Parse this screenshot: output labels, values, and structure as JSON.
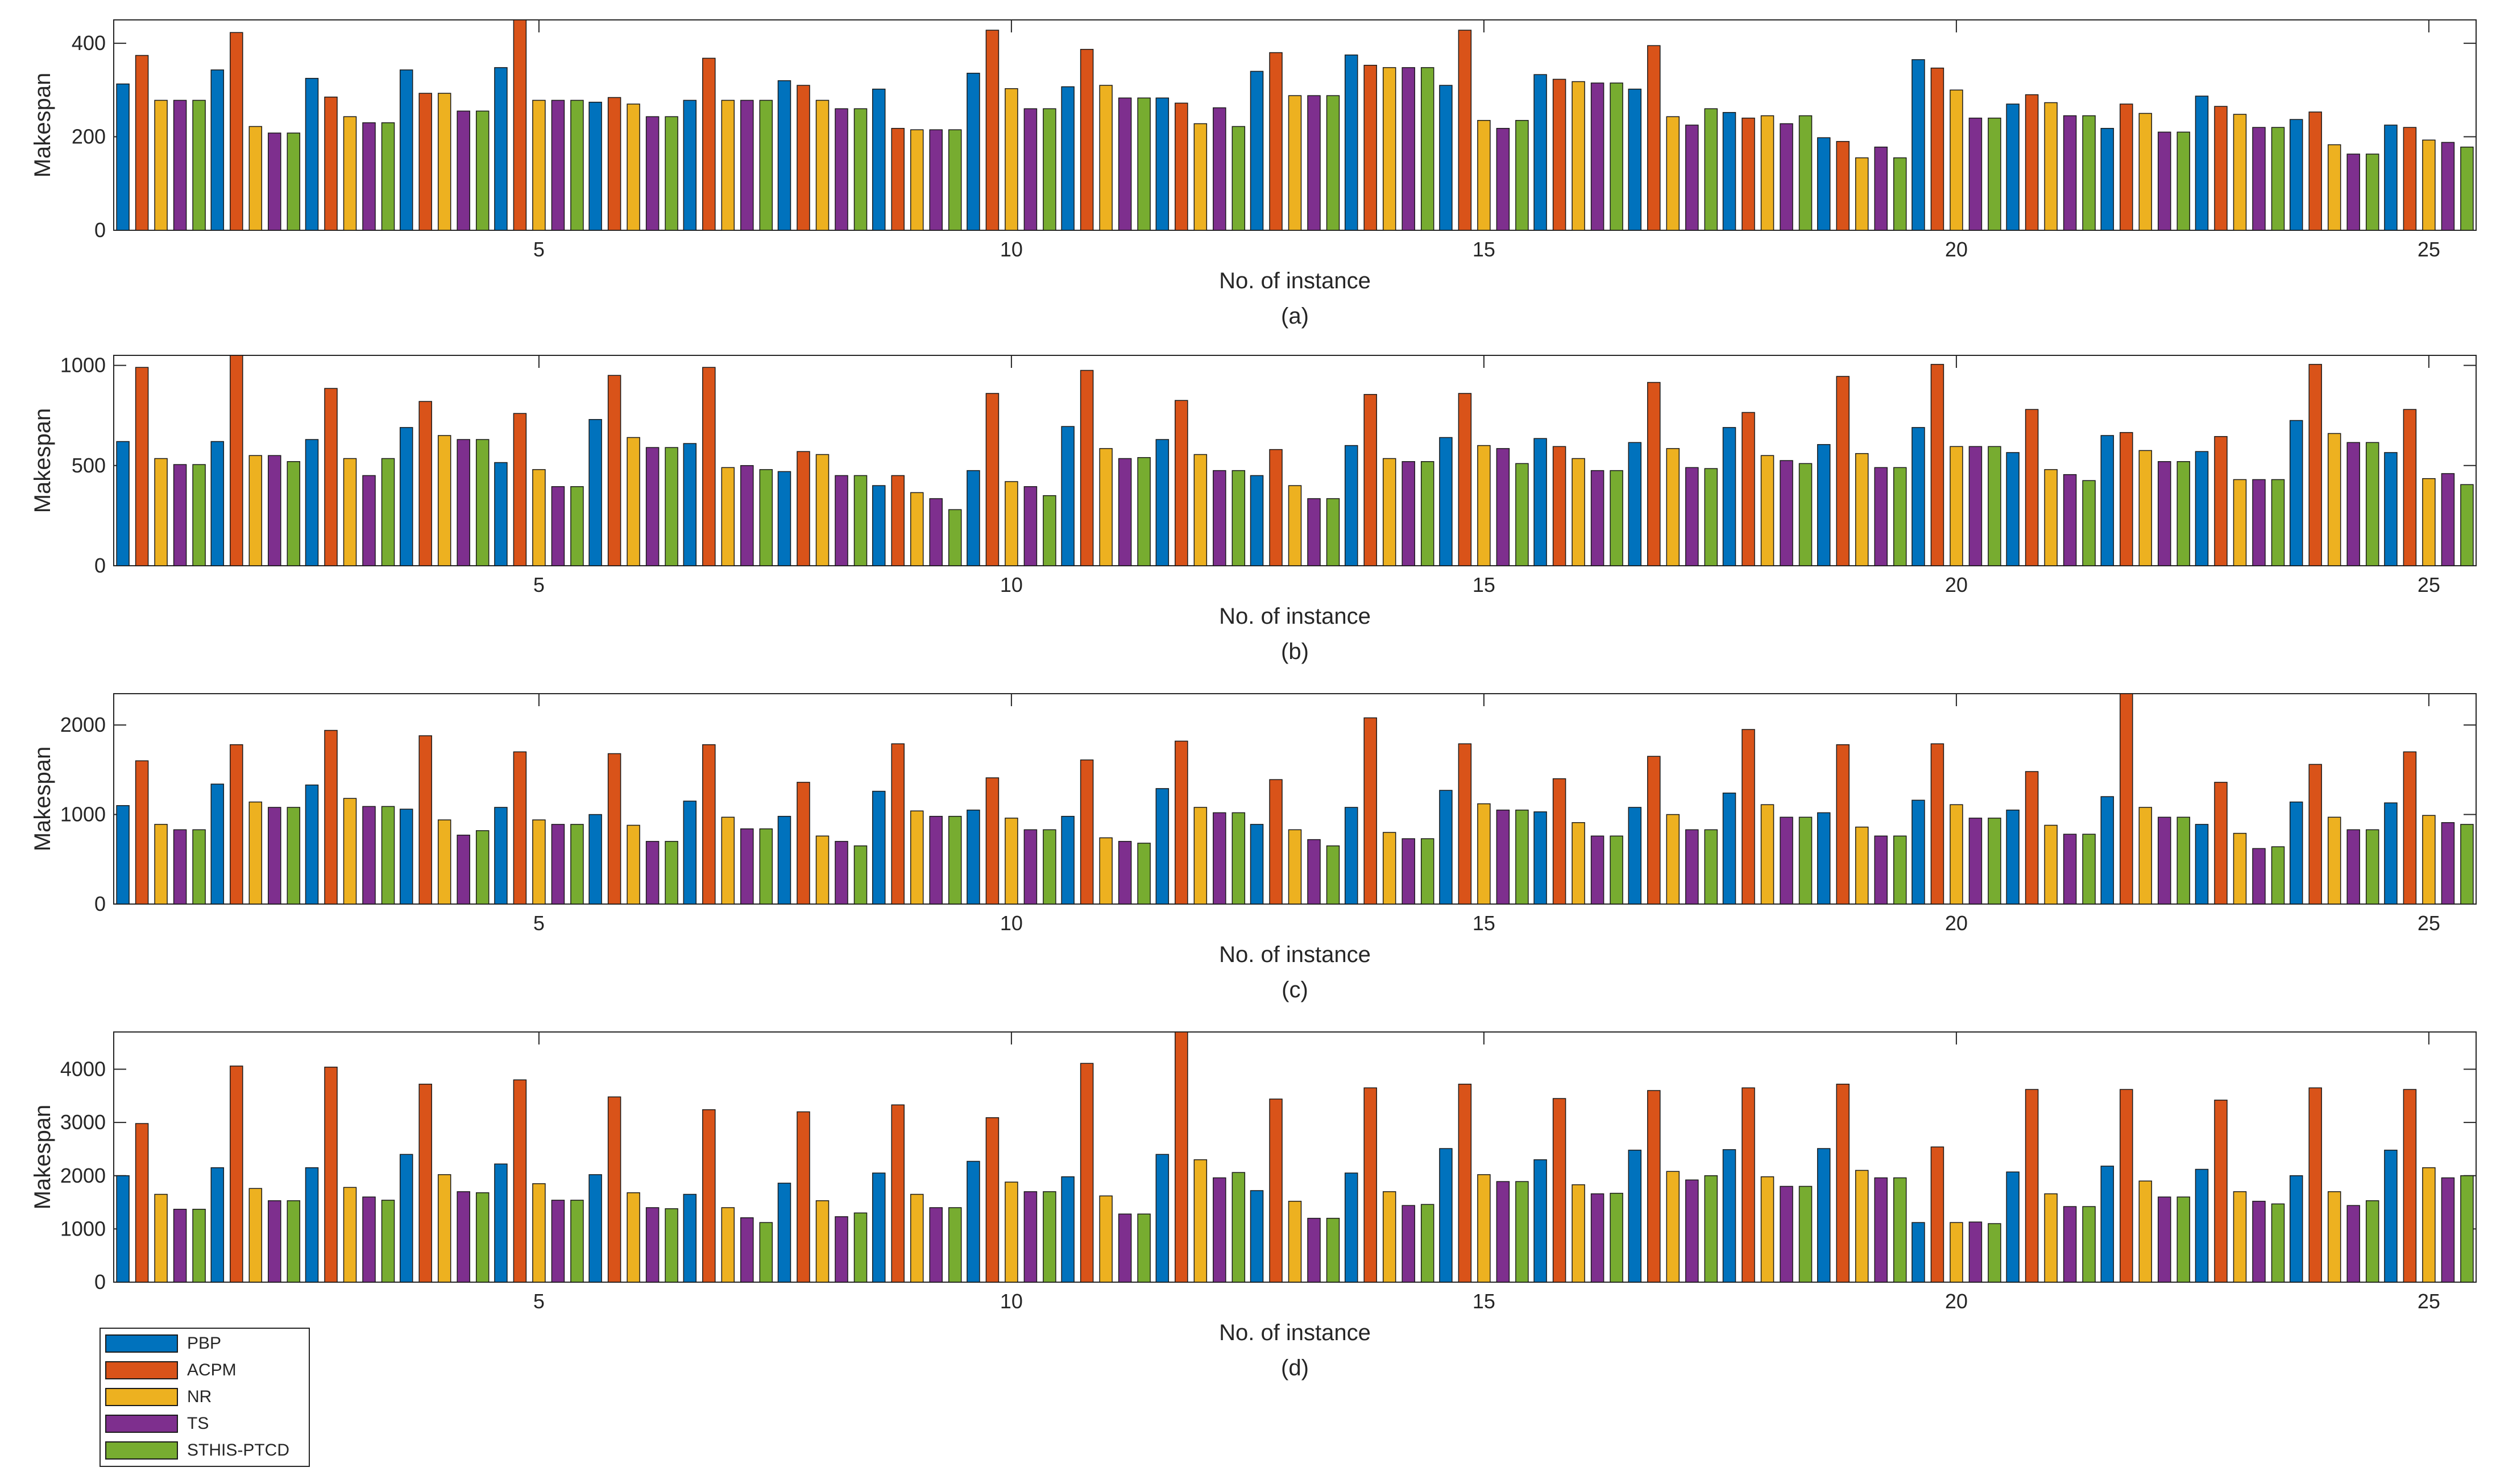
{
  "chart_data": [
    {
      "type": "bar",
      "label": "(a)",
      "xlabel": "No. of instance",
      "ylabel": "Makespan",
      "ylim": [
        0,
        450
      ],
      "yticks": [
        0,
        200,
        400
      ],
      "xticks": [
        5,
        10,
        15,
        20,
        25
      ],
      "categories": [
        1,
        2,
        3,
        4,
        5,
        6,
        7,
        8,
        9,
        10,
        11,
        12,
        13,
        14,
        15,
        16,
        17,
        18,
        19,
        20,
        21,
        22,
        23,
        24,
        25
      ],
      "series": [
        {
          "name": "PBP",
          "values": [
            313,
            343,
            325,
            343,
            348,
            274,
            278,
            320,
            302,
            336,
            307,
            283,
            340,
            375,
            310,
            333,
            302,
            252,
            198,
            365,
            270,
            218,
            287,
            237,
            225
          ]
        },
        {
          "name": "ACPM",
          "values": [
            374,
            423,
            285,
            293,
            450,
            284,
            368,
            310,
            218,
            428,
            387,
            272,
            380,
            353,
            428,
            323,
            395,
            240,
            190,
            347,
            290,
            270,
            265,
            253,
            220
          ]
        },
        {
          "name": "NR",
          "values": [
            278,
            222,
            243,
            293,
            278,
            270,
            278,
            278,
            215,
            303,
            310,
            228,
            288,
            348,
            235,
            318,
            243,
            245,
            155,
            300,
            273,
            250,
            248,
            183,
            193
          ]
        },
        {
          "name": "TS",
          "values": [
            278,
            208,
            230,
            255,
            278,
            243,
            278,
            260,
            215,
            260,
            283,
            262,
            288,
            348,
            218,
            315,
            225,
            228,
            178,
            240,
            245,
            210,
            220,
            163,
            188
          ]
        },
        {
          "name": "STHIS-PTCD",
          "values": [
            278,
            208,
            230,
            255,
            278,
            243,
            278,
            260,
            215,
            260,
            283,
            222,
            288,
            348,
            235,
            315,
            260,
            245,
            155,
            240,
            245,
            210,
            220,
            163,
            178
          ]
        }
      ]
    },
    {
      "type": "bar",
      "label": "(b)",
      "xlabel": "No. of instance",
      "ylabel": "Makespan",
      "ylim": [
        0,
        1050
      ],
      "yticks": [
        0,
        500,
        1000
      ],
      "xticks": [
        5,
        10,
        15,
        20,
        25
      ],
      "categories": [
        1,
        2,
        3,
        4,
        5,
        6,
        7,
        8,
        9,
        10,
        11,
        12,
        13,
        14,
        15,
        16,
        17,
        18,
        19,
        20,
        21,
        22,
        23,
        24,
        25
      ],
      "series": [
        {
          "name": "PBP",
          "values": [
            620,
            620,
            630,
            690,
            515,
            730,
            610,
            470,
            400,
            475,
            695,
            630,
            450,
            600,
            640,
            635,
            615,
            690,
            605,
            690,
            565,
            650,
            570,
            725,
            565
          ]
        },
        {
          "name": "ACPM",
          "values": [
            990,
            1050,
            885,
            820,
            760,
            950,
            990,
            570,
            450,
            860,
            975,
            825,
            580,
            855,
            860,
            595,
            915,
            765,
            945,
            1005,
            780,
            665,
            645,
            1005,
            780
          ]
        },
        {
          "name": "NR",
          "values": [
            535,
            550,
            535,
            650,
            480,
            640,
            490,
            555,
            365,
            420,
            585,
            555,
            400,
            535,
            600,
            535,
            585,
            550,
            560,
            595,
            480,
            575,
            430,
            660,
            435
          ]
        },
        {
          "name": "TS",
          "values": [
            505,
            550,
            450,
            630,
            395,
            590,
            500,
            450,
            335,
            395,
            535,
            475,
            335,
            520,
            585,
            475,
            490,
            525,
            490,
            595,
            455,
            520,
            430,
            615,
            460
          ]
        },
        {
          "name": "STHIS-PTCD",
          "values": [
            505,
            520,
            535,
            630,
            395,
            590,
            480,
            450,
            280,
            350,
            540,
            475,
            335,
            520,
            510,
            475,
            485,
            510,
            490,
            595,
            425,
            520,
            430,
            615,
            405
          ]
        }
      ]
    },
    {
      "type": "bar",
      "label": "(c)",
      "xlabel": "No. of instance",
      "ylabel": "Makespan",
      "ylim": [
        0,
        2350
      ],
      "yticks": [
        0,
        1000,
        2000
      ],
      "xticks": [
        5,
        10,
        15,
        20,
        25
      ],
      "categories": [
        1,
        2,
        3,
        4,
        5,
        6,
        7,
        8,
        9,
        10,
        11,
        12,
        13,
        14,
        15,
        16,
        17,
        18,
        19,
        20,
        21,
        22,
        23,
        24,
        25
      ],
      "series": [
        {
          "name": "PBP",
          "values": [
            1100,
            1340,
            1330,
            1060,
            1080,
            1000,
            1150,
            980,
            1260,
            1050,
            980,
            1290,
            890,
            1080,
            1270,
            1030,
            1080,
            1240,
            1020,
            1160,
            1050,
            1200,
            890,
            1140,
            1130
          ]
        },
        {
          "name": "ACPM",
          "values": [
            1600,
            1780,
            1940,
            1880,
            1700,
            1680,
            1780,
            1360,
            1790,
            1410,
            1610,
            1820,
            1390,
            2080,
            1790,
            1400,
            1650,
            1950,
            1780,
            1790,
            1480,
            2350,
            1360,
            1560,
            1700
          ]
        },
        {
          "name": "NR",
          "values": [
            890,
            1140,
            1180,
            940,
            940,
            880,
            970,
            760,
            1040,
            960,
            740,
            1080,
            830,
            800,
            1120,
            910,
            1000,
            1110,
            860,
            1110,
            880,
            1080,
            790,
            970,
            990
          ]
        },
        {
          "name": "TS",
          "values": [
            830,
            1080,
            1090,
            770,
            890,
            700,
            840,
            700,
            980,
            830,
            700,
            1020,
            720,
            730,
            1050,
            760,
            830,
            970,
            760,
            960,
            780,
            970,
            620,
            830,
            910
          ]
        },
        {
          "name": "STHIS-PTCD",
          "values": [
            830,
            1080,
            1090,
            820,
            890,
            700,
            840,
            650,
            980,
            830,
            680,
            1020,
            650,
            730,
            1050,
            760,
            830,
            970,
            760,
            960,
            780,
            970,
            640,
            830,
            890
          ]
        }
      ]
    },
    {
      "type": "bar",
      "label": "(d)",
      "xlabel": "No. of instance",
      "ylabel": "Makespan",
      "ylim": [
        0,
        4700
      ],
      "yticks": [
        0,
        1000,
        2000,
        3000,
        4000
      ],
      "xticks": [
        5,
        10,
        15,
        20,
        25
      ],
      "categories": [
        1,
        2,
        3,
        4,
        5,
        6,
        7,
        8,
        9,
        10,
        11,
        12,
        13,
        14,
        15,
        16,
        17,
        18,
        19,
        20,
        21,
        22,
        23,
        24,
        25
      ],
      "series": [
        {
          "name": "PBP",
          "values": [
            2000,
            2150,
            2150,
            2400,
            2220,
            2020,
            1650,
            1860,
            2050,
            2270,
            1980,
            2400,
            1720,
            2050,
            2510,
            2300,
            2480,
            2490,
            2510,
            1120,
            2070,
            2180,
            2120,
            2000,
            2480
          ]
        },
        {
          "name": "ACPM",
          "values": [
            2980,
            4060,
            4040,
            3720,
            3800,
            3480,
            3240,
            3200,
            3330,
            3090,
            4110,
            4700,
            3440,
            3650,
            3720,
            3450,
            3600,
            3650,
            3720,
            2540,
            3620,
            3620,
            3420,
            3650,
            3620
          ]
        },
        {
          "name": "NR",
          "values": [
            1650,
            1760,
            1780,
            2020,
            1850,
            1680,
            1400,
            1530,
            1650,
            1880,
            1620,
            2300,
            1520,
            1700,
            2020,
            1830,
            2080,
            1980,
            2100,
            1120,
            1660,
            1900,
            1700,
            1700,
            2150
          ]
        },
        {
          "name": "TS",
          "values": [
            1370,
            1530,
            1600,
            1700,
            1540,
            1400,
            1210,
            1230,
            1400,
            1700,
            1280,
            1960,
            1200,
            1440,
            1890,
            1660,
            1920,
            1800,
            1960,
            1130,
            1420,
            1600,
            1520,
            1440,
            1960
          ]
        },
        {
          "name": "STHIS-PTCD",
          "values": [
            1370,
            1530,
            1540,
            1680,
            1540,
            1380,
            1120,
            1300,
            1400,
            1700,
            1280,
            2060,
            1200,
            1460,
            1890,
            1670,
            2000,
            1800,
            1960,
            1100,
            1420,
            1600,
            1470,
            1530,
            2000
          ]
        }
      ]
    }
  ],
  "legend": [
    {
      "name": "PBP",
      "color": "#0072BD"
    },
    {
      "name": "ACPM",
      "color": "#D95319"
    },
    {
      "name": "NR",
      "color": "#EDB120"
    },
    {
      "name": "TS",
      "color": "#7E2F8E"
    },
    {
      "name": "STHIS-PTCD",
      "color": "#77AC30"
    }
  ]
}
